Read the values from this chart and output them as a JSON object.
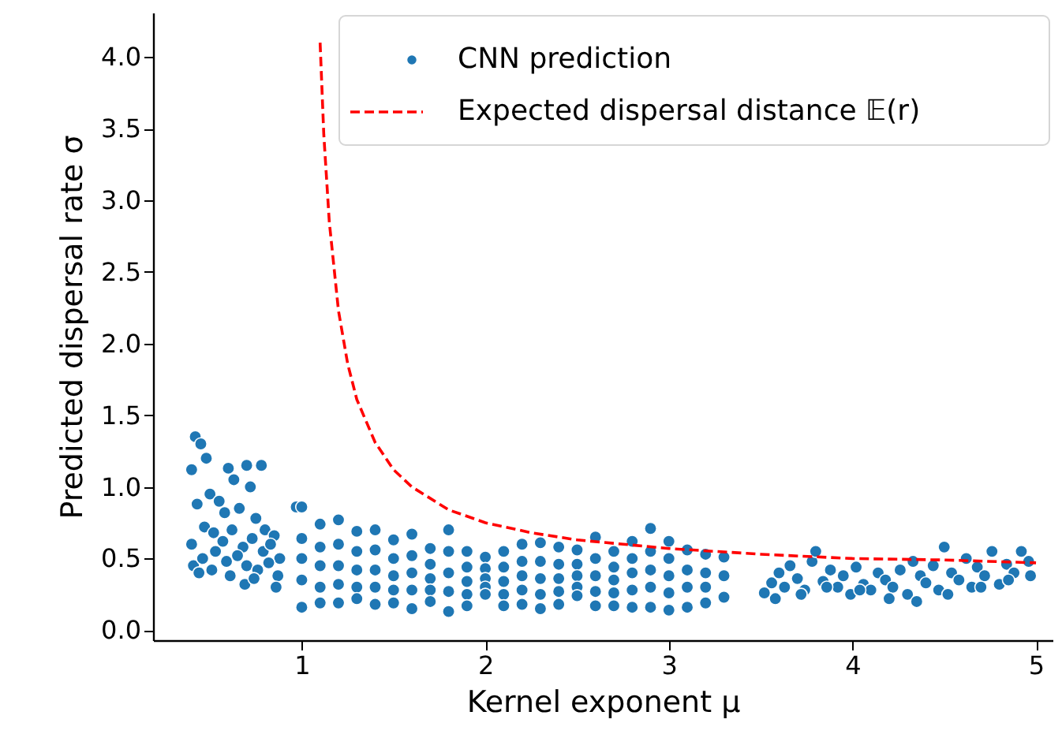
{
  "chart_data": {
    "type": "scatter",
    "xlabel": "Kernel exponent μ",
    "ylabel": "Predicted dispersal rate σ",
    "xlim": [
      0.19,
      5.09
    ],
    "ylim": [
      -0.07,
      4.31
    ],
    "xticks": [
      1,
      2,
      3,
      4,
      5
    ],
    "yticks": [
      {
        "value": 0,
        "label": "0.0"
      },
      {
        "value": 0.5,
        "label": "0.5"
      },
      {
        "value": 1,
        "label": "1.0"
      },
      {
        "value": 1.5,
        "label": "1.5"
      },
      {
        "value": 2,
        "label": "2.0"
      },
      {
        "value": 2.5,
        "label": "2.5"
      },
      {
        "value": 3,
        "label": "3.0"
      },
      {
        "value": 3.5,
        "label": "3.5"
      },
      {
        "value": 4,
        "label": "4.0"
      }
    ],
    "grid": false,
    "legend": "top right",
    "series": [
      {
        "name": "CNN prediction",
        "color": "#1f77b4",
        "marker": "circle",
        "x": [
          0.42,
          0.45,
          0.48,
          0.4,
          0.6,
          0.7,
          0.78,
          0.63,
          0.72,
          0.43,
          0.5,
          0.55,
          0.58,
          0.66,
          0.75,
          0.8,
          0.85,
          0.4,
          0.47,
          0.52,
          0.57,
          0.62,
          0.68,
          0.73,
          0.79,
          0.83,
          0.88,
          0.41,
          0.46,
          0.53,
          0.59,
          0.65,
          0.7,
          0.76,
          0.82,
          0.87,
          0.44,
          0.51,
          0.61,
          0.69,
          0.74,
          0.86,
          0.97,
          1.0,
          1.0,
          1.0,
          1.0,
          1.0,
          1.1,
          1.1,
          1.1,
          1.1,
          1.1,
          1.2,
          1.2,
          1.2,
          1.2,
          1.2,
          1.3,
          1.3,
          1.3,
          1.3,
          1.3,
          1.4,
          1.4,
          1.4,
          1.4,
          1.4,
          1.5,
          1.5,
          1.5,
          1.5,
          1.5,
          1.6,
          1.6,
          1.6,
          1.6,
          1.6,
          1.7,
          1.7,
          1.7,
          1.7,
          1.7,
          1.8,
          1.8,
          1.8,
          1.8,
          1.8,
          1.9,
          1.9,
          1.9,
          1.9,
          1.9,
          2.0,
          2.0,
          2.0,
          2.0,
          2.0,
          2.1,
          2.1,
          2.1,
          2.1,
          2.1,
          2.2,
          2.2,
          2.2,
          2.2,
          2.2,
          2.3,
          2.3,
          2.3,
          2.3,
          2.3,
          2.4,
          2.4,
          2.4,
          2.4,
          2.4,
          2.5,
          2.5,
          2.5,
          2.5,
          2.5,
          2.6,
          2.6,
          2.6,
          2.6,
          2.6,
          2.7,
          2.7,
          2.7,
          2.7,
          2.7,
          2.8,
          2.8,
          2.8,
          2.8,
          2.8,
          2.9,
          2.9,
          2.9,
          2.9,
          2.9,
          3.0,
          3.0,
          3.0,
          3.0,
          3.0,
          3.1,
          3.1,
          3.1,
          3.1,
          3.2,
          3.2,
          3.2,
          3.2,
          3.3,
          3.3,
          3.3,
          3.52,
          3.56,
          3.6,
          3.63,
          3.66,
          3.7,
          3.74,
          3.78,
          3.8,
          3.84,
          3.88,
          3.92,
          3.95,
          3.99,
          4.02,
          4.06,
          4.1,
          4.14,
          4.18,
          4.22,
          4.26,
          4.3,
          4.33,
          4.37,
          4.4,
          4.44,
          4.47,
          4.5,
          4.54,
          4.58,
          4.62,
          4.65,
          4.68,
          4.72,
          4.76,
          4.8,
          4.84,
          4.88,
          4.92,
          4.96,
          3.58,
          3.72,
          3.86,
          4.04,
          4.2,
          4.35,
          4.52,
          4.7,
          4.85,
          4.97
        ],
        "values": [
          1.35,
          1.3,
          1.2,
          1.12,
          1.13,
          1.15,
          1.15,
          1.05,
          1.0,
          0.88,
          0.95,
          0.9,
          0.82,
          0.85,
          0.78,
          0.7,
          0.66,
          0.6,
          0.72,
          0.68,
          0.62,
          0.7,
          0.58,
          0.64,
          0.55,
          0.6,
          0.5,
          0.45,
          0.5,
          0.55,
          0.48,
          0.52,
          0.45,
          0.42,
          0.47,
          0.38,
          0.4,
          0.42,
          0.38,
          0.32,
          0.36,
          0.3,
          0.86,
          0.86,
          0.64,
          0.5,
          0.35,
          0.16,
          0.74,
          0.58,
          0.45,
          0.3,
          0.19,
          0.77,
          0.6,
          0.45,
          0.32,
          0.19,
          0.69,
          0.55,
          0.42,
          0.3,
          0.22,
          0.7,
          0.56,
          0.42,
          0.3,
          0.18,
          0.63,
          0.5,
          0.38,
          0.28,
          0.19,
          0.67,
          0.52,
          0.4,
          0.28,
          0.15,
          0.57,
          0.46,
          0.36,
          0.28,
          0.2,
          0.7,
          0.55,
          0.4,
          0.27,
          0.13,
          0.55,
          0.44,
          0.34,
          0.25,
          0.17,
          0.51,
          0.43,
          0.36,
          0.3,
          0.25,
          0.55,
          0.44,
          0.34,
          0.25,
          0.17,
          0.6,
          0.48,
          0.38,
          0.28,
          0.18,
          0.61,
          0.48,
          0.36,
          0.25,
          0.15,
          0.58,
          0.46,
          0.36,
          0.27,
          0.18,
          0.56,
          0.46,
          0.38,
          0.3,
          0.24,
          0.65,
          0.5,
          0.38,
          0.27,
          0.17,
          0.55,
          0.44,
          0.35,
          0.26,
          0.17,
          0.62,
          0.5,
          0.4,
          0.28,
          0.16,
          0.71,
          0.55,
          0.42,
          0.3,
          0.16,
          0.62,
          0.5,
          0.38,
          0.26,
          0.14,
          0.56,
          0.42,
          0.3,
          0.16,
          0.53,
          0.4,
          0.3,
          0.19,
          0.51,
          0.38,
          0.23,
          0.26,
          0.33,
          0.4,
          0.3,
          0.45,
          0.36,
          0.28,
          0.48,
          0.55,
          0.34,
          0.42,
          0.3,
          0.38,
          0.25,
          0.44,
          0.32,
          0.28,
          0.4,
          0.35,
          0.3,
          0.42,
          0.25,
          0.48,
          0.38,
          0.33,
          0.45,
          0.28,
          0.58,
          0.4,
          0.35,
          0.5,
          0.3,
          0.44,
          0.38,
          0.55,
          0.32,
          0.46,
          0.4,
          0.55,
          0.48,
          0.22,
          0.25,
          0.3,
          0.28,
          0.22,
          0.2,
          0.25,
          0.3,
          0.35,
          0.38
        ]
      },
      {
        "name": "Expected dispersal distance 𝔼(r)",
        "type": "line",
        "color": "#ff0000",
        "line_style": "dashed",
        "x": [
          1.1,
          1.12,
          1.15,
          1.2,
          1.25,
          1.3,
          1.4,
          1.5,
          1.6,
          1.8,
          2,
          2.25,
          2.5,
          3,
          3.5,
          4,
          4.5,
          5
        ],
        "values": [
          4.1,
          3.46,
          2.85,
          2.23,
          1.86,
          1.61,
          1.31,
          1.12,
          1.0,
          0.84,
          0.75,
          0.68,
          0.63,
          0.57,
          0.53,
          0.5,
          0.49,
          0.47
        ]
      }
    ]
  }
}
